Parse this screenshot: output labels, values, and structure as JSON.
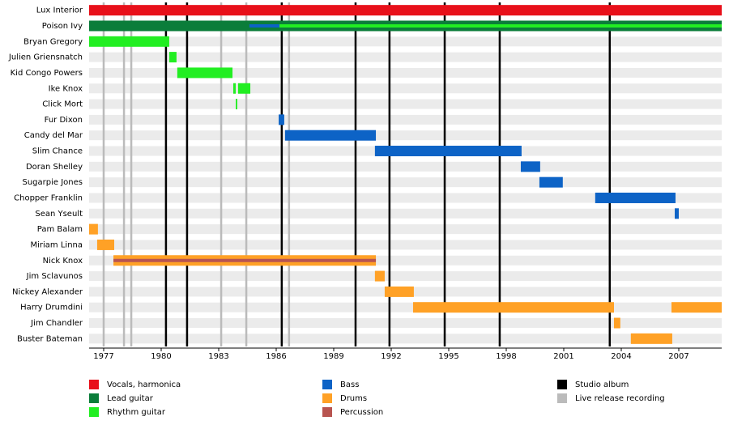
{
  "chart_data": {
    "type": "timeline",
    "categories": [
      "Lux Interior",
      "Poison Ivy",
      "Bryan Gregory",
      "Julien Griensnatch",
      "Kid Congo Powers",
      "Ike Knox",
      "Click Mort",
      "Fur Dixon",
      "Candy del Mar",
      "Slim Chance",
      "Doran Shelley",
      "Sugarpie Jones",
      "Chopper Franklin",
      "Sean Yseult",
      "Pam Balam",
      "Miriam Linna",
      "Nick Knox",
      "Jim Sclavunos",
      "Nickey Alexander",
      "Harry Drumdini",
      "Jim Chandler",
      "Buster Bateman"
    ],
    "series": [
      {
        "name": "Vocals, harmonica",
        "color": "#e8101a",
        "values": [
          [
            [
              1976.24,
              2009.24
            ]
          ],
          null,
          null,
          null,
          null,
          null,
          null,
          null,
          null,
          null,
          null,
          null,
          null,
          null,
          null,
          null,
          null,
          null,
          null,
          null,
          null,
          null
        ]
      },
      {
        "name": "Lead guitar",
        "color": "#0b7d3a",
        "values": [
          null,
          [
            [
              1976.24,
              2009.24
            ]
          ],
          null,
          null,
          null,
          null,
          null,
          null,
          null,
          null,
          null,
          null,
          null,
          null,
          null,
          null,
          null,
          null,
          null,
          null,
          null,
          null
        ]
      },
      {
        "name": "Rhythm guitar",
        "color": "#22ee22",
        "values": [
          null,
          [
            [
              1986.17,
              2009.24
            ]
          ],
          [
            [
              1976.24,
              1980.42
            ]
          ],
          [
            [
              1980.42,
              1980.8
            ]
          ],
          [
            [
              1980.84,
              1983.72
            ]
          ],
          [
            [
              1983.76,
              1983.89
            ],
            [
              1984.01,
              1984.65
            ]
          ],
          [
            [
              1983.89,
              1983.97
            ]
          ],
          null,
          null,
          null,
          null,
          null,
          null,
          null,
          null,
          null,
          null,
          null,
          null,
          null,
          null,
          null
        ]
      },
      {
        "name": "Bass",
        "color": "#0d63c6",
        "values": [
          null,
          [
            [
              1984.6,
              1986.17
            ]
          ],
          null,
          null,
          null,
          null,
          null,
          [
            [
              1986.13,
              1986.42
            ]
          ],
          [
            [
              1986.46,
              1991.2
            ]
          ],
          [
            [
              1991.15,
              1998.8
            ]
          ],
          [
            [
              1998.76,
              1999.77
            ]
          ],
          [
            [
              1999.73,
              2000.95
            ]
          ],
          [
            [
              2002.64,
              2006.83
            ]
          ],
          [
            [
              2006.79,
              2007.0
            ]
          ],
          null,
          null,
          null,
          null,
          null,
          null,
          null,
          null
        ]
      },
      {
        "name": "Drums",
        "color": "#ffa126",
        "values": [
          null,
          null,
          null,
          null,
          null,
          null,
          null,
          null,
          null,
          null,
          null,
          null,
          null,
          null,
          [
            [
              1976.24,
              1976.7
            ]
          ],
          [
            [
              1976.66,
              1977.55
            ]
          ],
          [
            [
              1977.51,
              1991.2
            ]
          ],
          [
            [
              1991.15,
              1991.66
            ]
          ],
          [
            [
              1991.66,
              1993.18
            ]
          ],
          [
            [
              1993.14,
              2003.62
            ],
            [
              2006.62,
              2009.24
            ]
          ],
          [
            [
              2003.62,
              2003.95
            ]
          ],
          [
            [
              2004.5,
              2006.66
            ]
          ]
        ]
      },
      {
        "name": "Percussion",
        "color": "#b85450",
        "values": [
          null,
          null,
          null,
          null,
          null,
          null,
          null,
          null,
          null,
          null,
          null,
          null,
          null,
          null,
          null,
          null,
          [
            [
              1977.51,
              1991.2
            ]
          ],
          null,
          null,
          null,
          null,
          null
        ]
      }
    ],
    "events": [
      {
        "name": "Studio album",
        "color": "#000000",
        "x": [
          1980.25,
          1981.35,
          1986.29,
          1990.14,
          1991.91,
          1994.79,
          1997.66,
          2003.4
        ]
      },
      {
        "name": "Live release recording",
        "color": "#bbbbbb",
        "x": [
          1977.0,
          1978.06,
          1978.44,
          1983.13,
          1984.44,
          1986.67
        ]
      }
    ],
    "xlim": [
      1976.24,
      2009.24
    ],
    "xticks": [
      1977,
      1980,
      1983,
      1986,
      1989,
      1992,
      1995,
      1998,
      2001,
      2004,
      2007
    ]
  }
}
